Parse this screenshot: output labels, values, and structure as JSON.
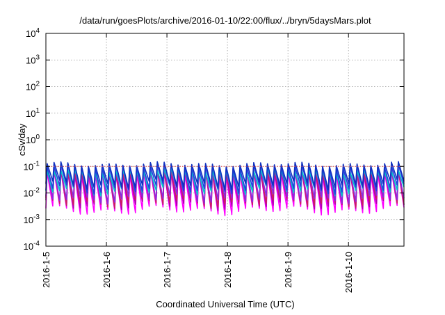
{
  "chart_data": {
    "type": "line",
    "title": "/data/run/goesPlots/archive/2016-01-10/22:00/flux/../bryn/5daysMars.plot",
    "xlabel": "Coordinated Universal Time (UTC)",
    "ylabel": "cSv/day",
    "y_scale": "log",
    "ylim": [
      0.0001,
      10000
    ],
    "xlim": [
      "2016-01-05T00:00",
      "2016-01-10T22:00"
    ],
    "x_tick_labels": [
      "2016-1-5",
      "2016-1-6",
      "2016-1-7",
      "2016-1-8",
      "2016-1-9",
      "2016-1-10"
    ],
    "x_tick_dates": [
      "2016-01-05T00:00",
      "2016-01-06T00:00",
      "2016-01-07T00:00",
      "2016-01-08T00:00",
      "2016-01-09T00:00",
      "2016-01-10T00:00"
    ],
    "y_ticks": [
      {
        "base": "10",
        "exp": "-4"
      },
      {
        "base": "10",
        "exp": "-3"
      },
      {
        "base": "10",
        "exp": "-2"
      },
      {
        "base": "10",
        "exp": "-1"
      },
      {
        "base": "10",
        "exp": "0"
      },
      {
        "base": "10",
        "exp": "1"
      },
      {
        "base": "10",
        "exp": "2"
      },
      {
        "base": "10",
        "exp": "3"
      },
      {
        "base": "10",
        "exp": "4"
      }
    ],
    "y_tick_values": [
      0.0001,
      0.001,
      0.01,
      0.1,
      1,
      10,
      100,
      1000,
      10000
    ],
    "grid": true,
    "sawtooth_cycles": 52,
    "reference_line": {
      "y": 0.1,
      "color": "#e05050"
    },
    "series": [
      {
        "color": "#ff00ff",
        "peak": 0.055,
        "trough": 0.0022
      },
      {
        "color": "#b000b0",
        "peak": 0.065,
        "trough": 0.0035
      },
      {
        "color": "#cc2060",
        "peak": 0.075,
        "trough": 0.0042
      },
      {
        "color": "#8a2be2",
        "peak": 0.085,
        "trough": 0.006
      },
      {
        "color": "#00c8c8",
        "peak": 0.07,
        "trough": 0.012
      },
      {
        "color": "#2040e0",
        "peak": 0.1,
        "trough": 0.014
      },
      {
        "color": "#1030c0",
        "peak": 0.12,
        "trough": 0.02
      }
    ]
  }
}
